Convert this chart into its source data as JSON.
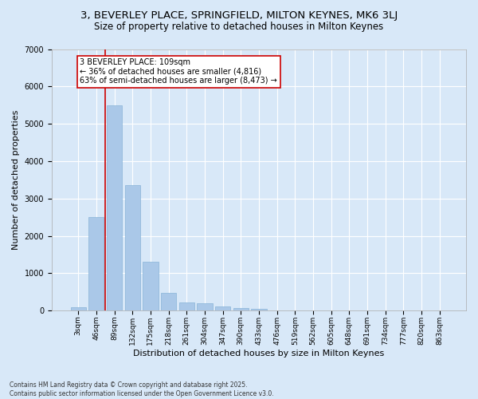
{
  "title1": "3, BEVERLEY PLACE, SPRINGFIELD, MILTON KEYNES, MK6 3LJ",
  "title2": "Size of property relative to detached houses in Milton Keynes",
  "xlabel": "Distribution of detached houses by size in Milton Keynes",
  "ylabel": "Number of detached properties",
  "categories": [
    "3sqm",
    "46sqm",
    "89sqm",
    "132sqm",
    "175sqm",
    "218sqm",
    "261sqm",
    "304sqm",
    "347sqm",
    "390sqm",
    "433sqm",
    "476sqm",
    "519sqm",
    "562sqm",
    "605sqm",
    "648sqm",
    "691sqm",
    "734sqm",
    "777sqm",
    "820sqm",
    "863sqm"
  ],
  "bar_heights": [
    100,
    2500,
    5500,
    3350,
    1300,
    480,
    220,
    200,
    110,
    70,
    40,
    0,
    0,
    0,
    0,
    0,
    0,
    0,
    0,
    0,
    0
  ],
  "bar_color": "#aac8e8",
  "bar_edge_color": "#88b4d8",
  "vline_color": "#cc0000",
  "annotation_text": "3 BEVERLEY PLACE: 109sqm\n← 36% of detached houses are smaller (4,816)\n63% of semi-detached houses are larger (8,473) →",
  "annotation_box_color": "#ffffff",
  "annotation_box_edge": "#cc0000",
  "ylim": [
    0,
    7000
  ],
  "background_color": "#d8e8f8",
  "plot_bg_color": "#d8e8f8",
  "footer1": "Contains HM Land Registry data © Crown copyright and database right 2025.",
  "footer2": "Contains public sector information licensed under the Open Government Licence v3.0.",
  "title_fontsize": 9.5,
  "subtitle_fontsize": 8.5,
  "tick_fontsize": 6.5,
  "ylabel_fontsize": 8,
  "xlabel_fontsize": 8,
  "footer_fontsize": 5.5,
  "annotation_fontsize": 7,
  "vline_x": 1.5
}
